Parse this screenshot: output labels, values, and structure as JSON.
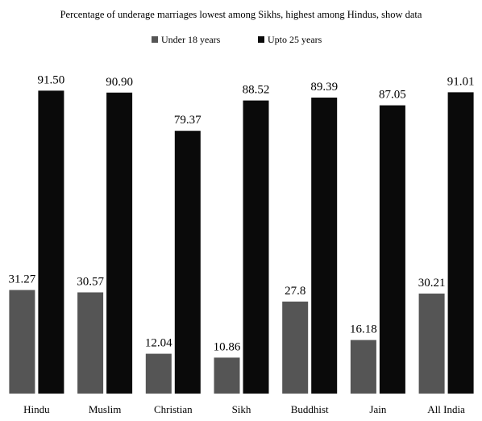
{
  "chart_data": {
    "type": "bar",
    "title": "",
    "subtitle": "Percentage of underage marriages lowest among Sikhs, highest among Hindus, show data",
    "xlabel": "",
    "ylabel": "",
    "ylim": [
      0,
      95
    ],
    "grid": false,
    "legend_position": "top-center",
    "categories": [
      "Hindu",
      "Muslim",
      "Christian",
      "Sikh",
      "Buddhist",
      "Jain",
      "All India"
    ],
    "series": [
      {
        "name": "Under 18 years",
        "color": "#555555",
        "values": [
          31.27,
          30.57,
          12.04,
          10.86,
          27.8,
          16.18,
          30.21
        ],
        "labels": [
          "31.27",
          "30.57",
          "12.04",
          "10.86",
          "27.8",
          "16.18",
          "30.21"
        ]
      },
      {
        "name": "Upto 25 years",
        "color": "#0a0a0a",
        "values": [
          91.5,
          90.9,
          79.37,
          88.52,
          89.39,
          87.05,
          91.01
        ],
        "labels": [
          "91.50",
          "90.90",
          "79.37",
          "88.52",
          "89.39",
          "87.05",
          "91.01"
        ]
      }
    ]
  }
}
